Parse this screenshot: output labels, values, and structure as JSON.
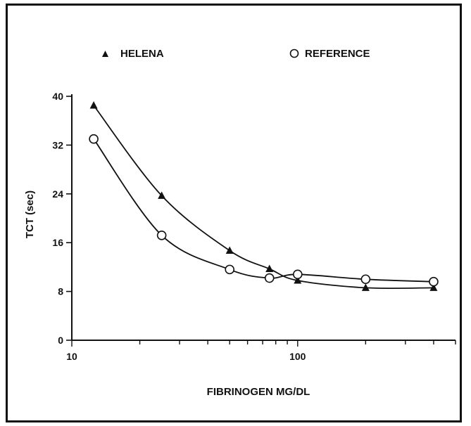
{
  "chart_data": {
    "type": "line",
    "title": "",
    "xlabel": "FIBRINOGEN MG/DL",
    "ylabel": "TCT (sec)",
    "x_scale": "log",
    "xlim": [
      10,
      500
    ],
    "ylim": [
      0,
      40
    ],
    "x_ticks": [
      10,
      100
    ],
    "y_ticks": [
      0,
      8,
      16,
      24,
      32,
      40
    ],
    "grid": false,
    "legend_position": "top",
    "series": [
      {
        "name": "HELENA",
        "marker": "filled-triangle",
        "x": [
          12.5,
          25,
          50,
          75,
          100,
          200,
          400
        ],
        "y": [
          38.5,
          23.7,
          14.7,
          11.7,
          9.8,
          8.6,
          8.6
        ]
      },
      {
        "name": "REFERENCE",
        "marker": "open-circle",
        "x": [
          12.5,
          25,
          50,
          75,
          100,
          200,
          400
        ],
        "y": [
          33.0,
          17.2,
          11.6,
          10.2,
          10.8,
          10.0,
          9.6
        ]
      }
    ]
  },
  "colors": {
    "ink": "#111111",
    "background": "#ffffff"
  }
}
